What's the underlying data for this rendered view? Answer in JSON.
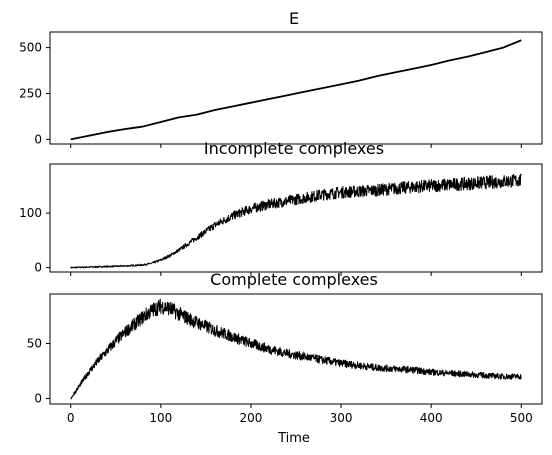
{
  "chart_data": [
    {
      "type": "line",
      "title": "E",
      "xlabel": "",
      "ylabel": "",
      "xlim": [
        -23,
        523
      ],
      "ylim": [
        -25,
        585
      ],
      "xticks": [
        0,
        100,
        200,
        300,
        400,
        500
      ],
      "xtick_labels_shown": false,
      "yticks": [
        0,
        250,
        500
      ],
      "ytick_labels": [
        "0",
        "250",
        "500"
      ],
      "series": [
        {
          "color": "#000000",
          "x": [
            0,
            20,
            40,
            60,
            80,
            100,
            120,
            140,
            160,
            180,
            200,
            220,
            240,
            260,
            280,
            300,
            320,
            340,
            360,
            380,
            400,
            420,
            440,
            460,
            480,
            500
          ],
          "y": [
            0,
            20,
            40,
            56,
            70,
            95,
            120,
            135,
            160,
            180,
            200,
            220,
            240,
            260,
            280,
            300,
            320,
            345,
            365,
            385,
            405,
            430,
            450,
            475,
            500,
            540
          ]
        }
      ]
    },
    {
      "type": "line",
      "title": "Incomplete complexes",
      "xlabel": "",
      "ylabel": "",
      "xlim": [
        -23,
        523
      ],
      "ylim": [
        -8,
        190
      ],
      "xticks": [
        0,
        100,
        200,
        300,
        400,
        500
      ],
      "xtick_labels_shown": false,
      "yticks": [
        0,
        100
      ],
      "ytick_labels": [
        "0",
        "100"
      ],
      "series": [
        {
          "color": "#000000",
          "noise": "dense",
          "x": [
            0,
            20,
            40,
            60,
            80,
            90,
            100,
            110,
            120,
            140,
            160,
            180,
            200,
            220,
            240,
            260,
            280,
            300,
            320,
            340,
            360,
            380,
            400,
            420,
            440,
            460,
            480,
            500
          ],
          "y": [
            0,
            1,
            2,
            3,
            5,
            8,
            14,
            22,
            32,
            55,
            78,
            95,
            108,
            116,
            122,
            128,
            134,
            138,
            140,
            142,
            145,
            148,
            150,
            152,
            154,
            156,
            158,
            160
          ]
        }
      ]
    },
    {
      "type": "line",
      "title": "Complete complexes",
      "xlabel": "Time",
      "ylabel": "",
      "xlim": [
        -23,
        523
      ],
      "ylim": [
        -5,
        95
      ],
      "xticks": [
        0,
        100,
        200,
        300,
        400,
        500
      ],
      "xtick_labels": [
        "0",
        "100",
        "200",
        "300",
        "400",
        "500"
      ],
      "yticks": [
        0,
        50
      ],
      "ytick_labels": [
        "0",
        "50"
      ],
      "series": [
        {
          "color": "#000000",
          "noise": "dense",
          "x": [
            0,
            10,
            20,
            30,
            40,
            50,
            60,
            70,
            80,
            90,
            100,
            110,
            120,
            140,
            160,
            180,
            200,
            220,
            240,
            260,
            280,
            300,
            320,
            340,
            360,
            380,
            400,
            420,
            440,
            460,
            480,
            500
          ],
          "y": [
            0,
            12,
            24,
            34,
            43,
            52,
            60,
            67,
            74,
            80,
            84,
            82,
            77,
            69,
            62,
            56,
            50,
            45,
            41,
            38,
            35,
            32,
            30,
            28,
            27,
            26,
            24,
            23,
            22,
            21,
            20,
            20
          ]
        }
      ]
    }
  ]
}
